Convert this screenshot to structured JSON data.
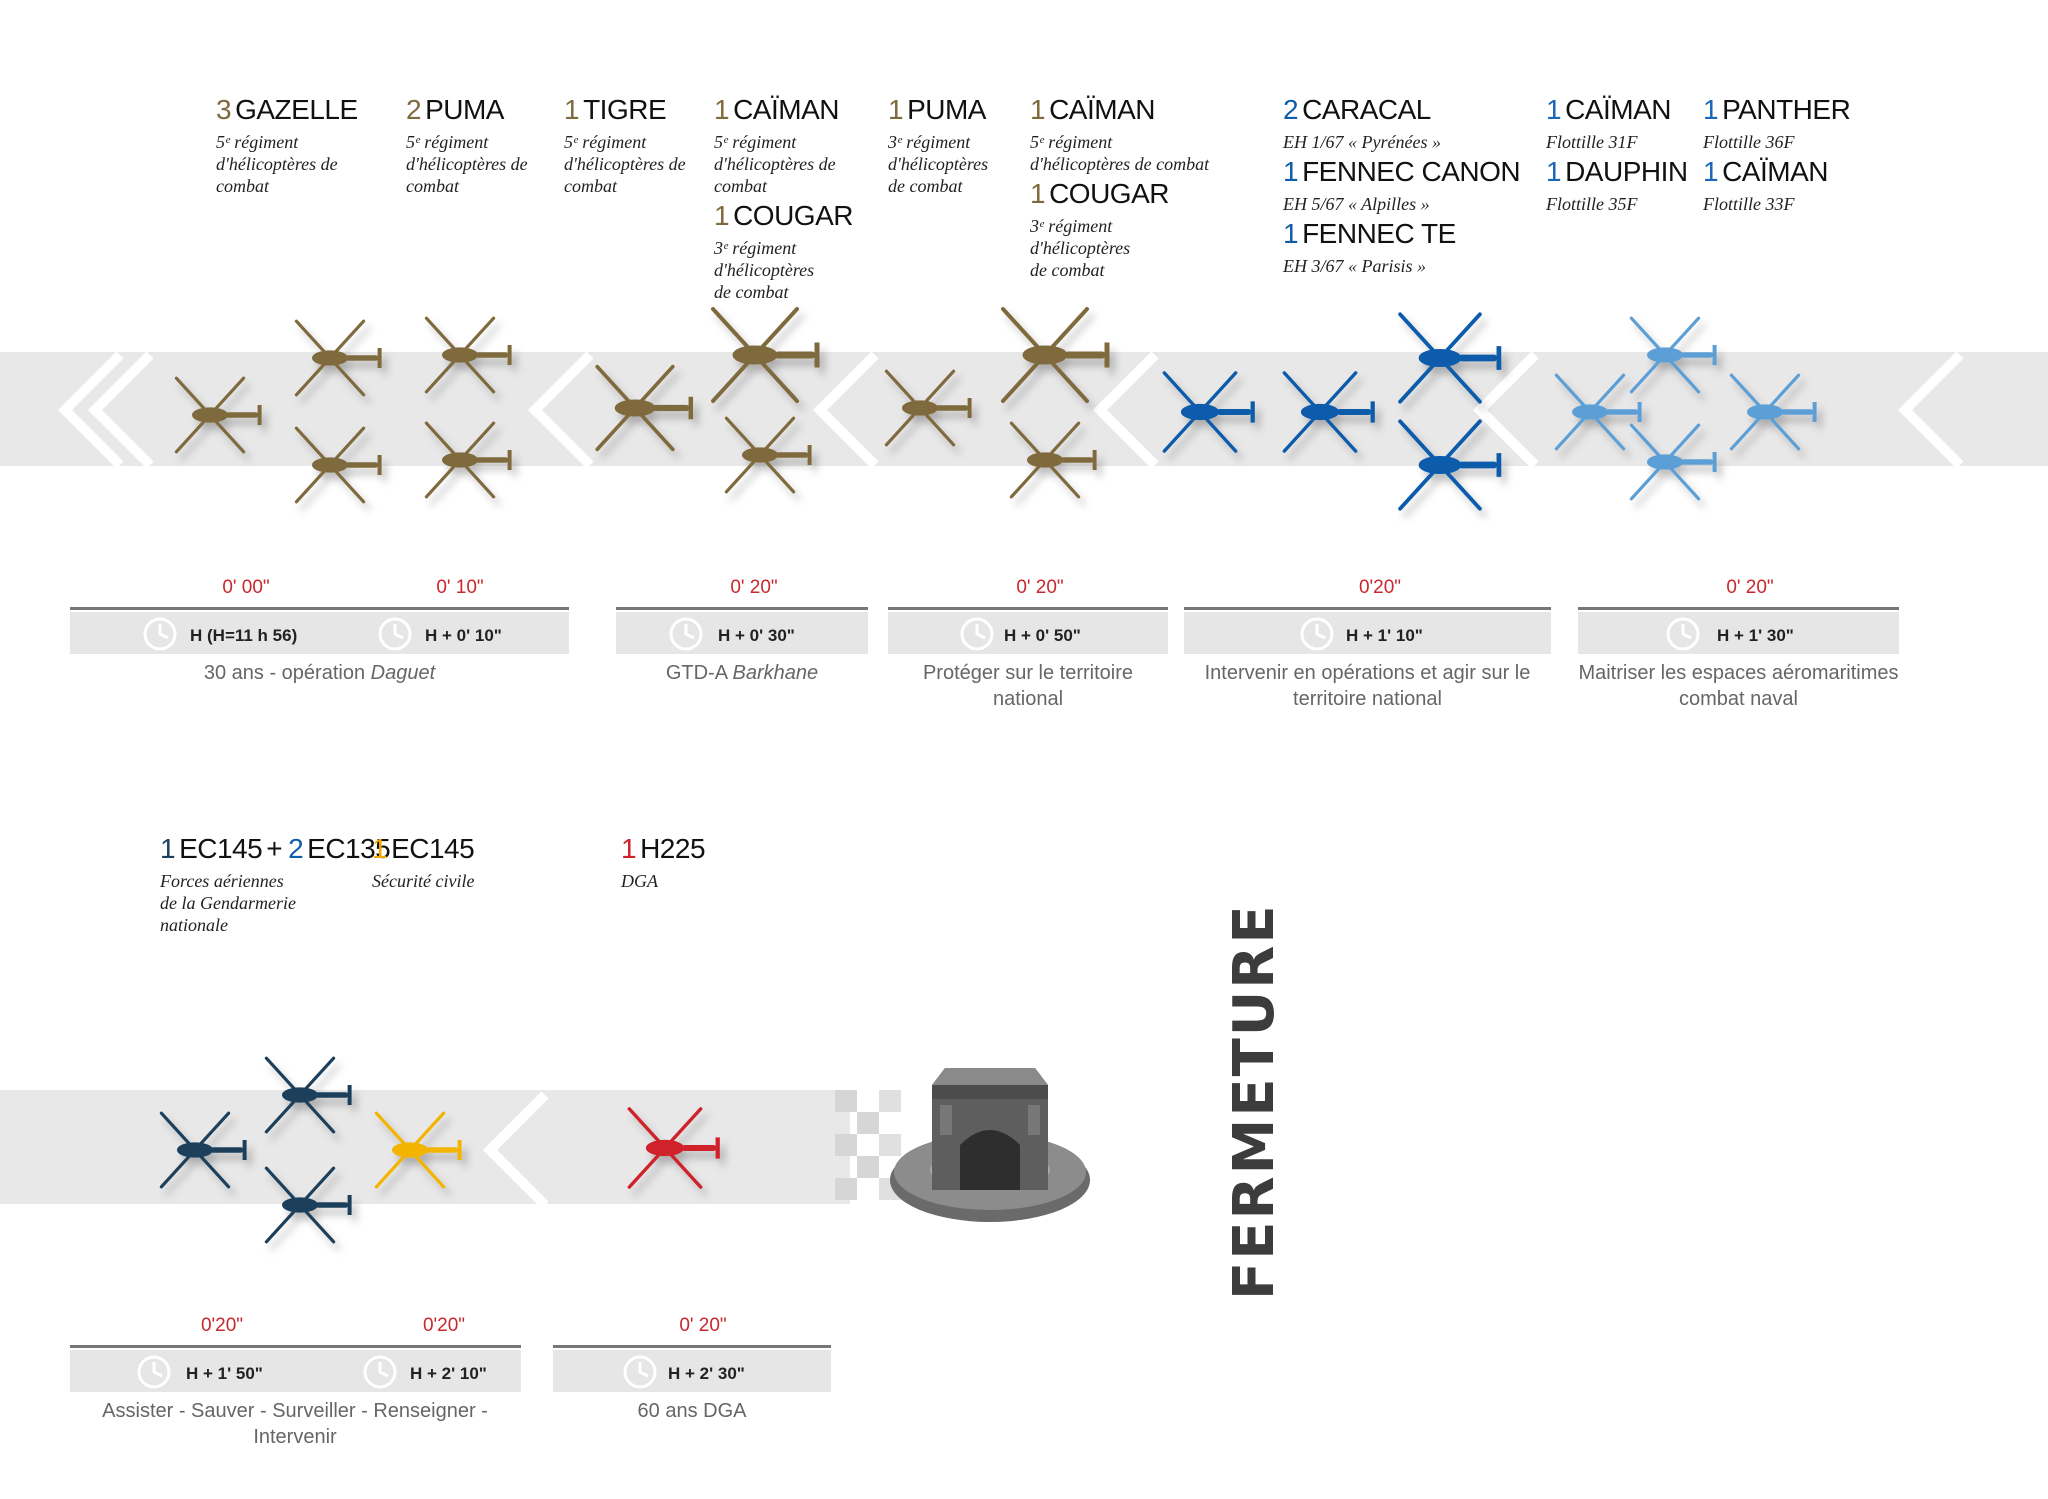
{
  "top_units": [
    {
      "count": "3",
      "name": "GAZELLE",
      "sub": [
        "5ᵉ régiment",
        "d'hélicoptères de",
        "combat"
      ],
      "color": "brown"
    },
    {
      "count": "2",
      "name": "PUMA",
      "sub": [
        "5ᵉ régiment",
        "d'hélicoptères de",
        "combat"
      ],
      "color": "brown"
    },
    {
      "count": "1",
      "name": "TIGRE",
      "sub": [
        "5ᵉ régiment",
        "d'hélicoptères de",
        "combat"
      ],
      "color": "brown"
    },
    {
      "count": "1",
      "name": "CAÏMAN",
      "sub": [
        "5ᵉ régiment",
        "d'hélicoptères de",
        "combat"
      ],
      "color": "brown"
    },
    {
      "count": "1",
      "name": "COUGAR",
      "sub": [
        "3ᵉ régiment",
        "d'hélicoptères",
        "de combat"
      ],
      "color": "brown"
    },
    {
      "count": "1",
      "name": "PUMA",
      "sub": [
        "3ᵉ régiment",
        "d'hélicoptères",
        "de combat"
      ],
      "color": "brown"
    },
    {
      "count": "1",
      "name": "CAÏMAN",
      "sub": [
        "5ᵉ régiment",
        "d'hélicoptères de combat"
      ],
      "color": "brown"
    },
    {
      "count": "1",
      "name": "COUGAR",
      "sub": [
        "3ᵉ régiment",
        "d'hélicoptères",
        "de combat"
      ],
      "color": "brown"
    },
    {
      "count": "2",
      "name": "CARACAL",
      "sub": [
        "EH 1/67 « Pyrénées »"
      ],
      "color": "blue"
    },
    {
      "count": "1",
      "name": "FENNEC CANON",
      "sub": [
        "EH 5/67 « Alpilles »"
      ],
      "color": "blue"
    },
    {
      "count": "1",
      "name": "FENNEC TE",
      "sub": [
        "EH 3/67 « Parisis »"
      ],
      "color": "blue"
    },
    {
      "count": "1",
      "name": "CAÏMAN",
      "sub": [
        "Flottille 31F"
      ],
      "color": "lblue"
    },
    {
      "count": "1",
      "name": "DAUPHIN",
      "sub": [
        "Flottille 35F"
      ],
      "color": "lblue"
    },
    {
      "count": "1",
      "name": "PANTHER",
      "sub": [
        "Flottille 36F"
      ],
      "color": "lblue"
    },
    {
      "count": "1",
      "name": "CAÏMAN",
      "sub": [
        "Flottille 33F"
      ],
      "color": "lblue"
    }
  ],
  "bottom_units": {
    "gendarmerie": {
      "count1": "1",
      "name1": "EC145",
      "plus": "+",
      "count2": "2",
      "name2": "EC135",
      "sub": [
        "Forces aériennes",
        "de la Gendarmerie",
        "nationale"
      ]
    },
    "securite": {
      "count": "1",
      "name": "EC145",
      "sub": [
        "Sécurité civile"
      ]
    },
    "dga": {
      "count": "1",
      "name": "H225",
      "sub": [
        "DGA"
      ]
    }
  },
  "top_timeline": {
    "durations": [
      "0' 00\"",
      "0' 10\"",
      "0' 20\"",
      "0' 20\"",
      "0'20\"",
      "0' 20\""
    ],
    "times": [
      "H (H=11 h 56)",
      "H + 0' 10\"",
      "H + 0' 30\"",
      "H + 0' 50\"",
      "H + 1' 10\"",
      "H + 1' 30\""
    ],
    "captions": [
      {
        "text": "30 ans - opération ",
        "em": "Daguet"
      },
      {
        "text": "GTD-A ",
        "em": "Barkhane"
      },
      {
        "text": "Protéger sur le territoire national",
        "em": ""
      },
      {
        "text": "Intervenir en opérations et agir sur le territoire national",
        "em": ""
      },
      {
        "text": "Maitriser les espaces aéromaritimes combat naval",
        "em": ""
      }
    ]
  },
  "bottom_timeline": {
    "durations": [
      "0'20\"",
      "0'20\"",
      "0' 20\""
    ],
    "times": [
      "H + 1' 50\"",
      "H + 2' 10\"",
      "H + 2' 30\""
    ],
    "captions": [
      "Assister - Sauver - Surveiller - Renseigner - Intervenir",
      "60 ans DGA"
    ]
  },
  "closing_label": "FERMETURE",
  "colors": {
    "brown": "#7f6a3d",
    "blue": "#0f5cab",
    "light_blue": "#5b9fd6",
    "navy": "#1c3f5c",
    "yellow": "#f2b400",
    "red": "#d0202b",
    "duration_red": "#c8282d",
    "band_gray": "#e8e8e8"
  }
}
